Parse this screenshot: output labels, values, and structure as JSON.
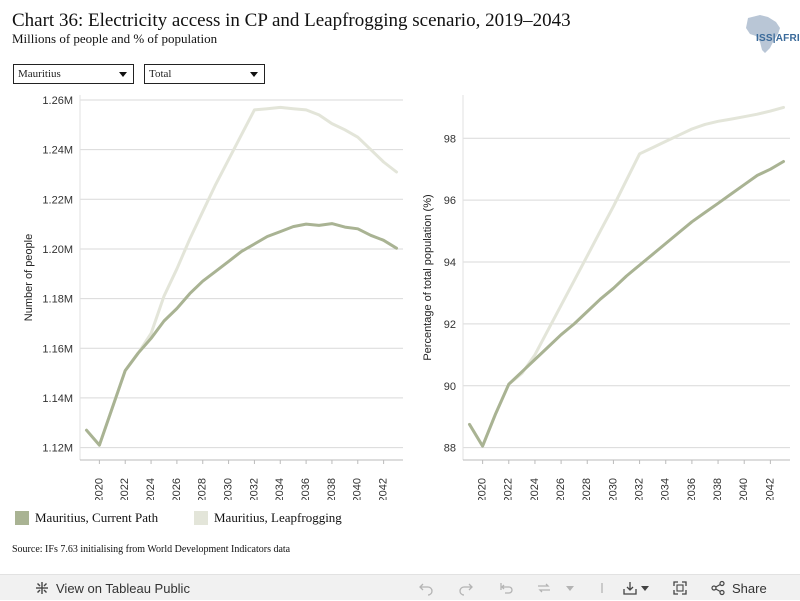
{
  "header": {
    "title": "Chart 36: Electricity access in CP and Leapfrogging scenario, 2019–2043",
    "subtitle": "Millions of people and % of population",
    "logo_text": "ISS|AFRICA"
  },
  "filters": {
    "country": "Mauritius",
    "measure": "Total"
  },
  "colors": {
    "current_path": "#a9b393",
    "leapfrogging": "#e3e5d9",
    "grid": "#d9d9d9"
  },
  "chart_data": [
    {
      "type": "line",
      "ylabel": "Number of people",
      "ylim": [
        1.115,
        1.262
      ],
      "yticks": [
        1.12,
        1.14,
        1.16,
        1.18,
        1.2,
        1.22,
        1.24,
        1.26
      ],
      "ytick_labels": [
        "1.12M",
        "1.14M",
        "1.16M",
        "1.18M",
        "1.20M",
        "1.22M",
        "1.24M",
        "1.26M"
      ],
      "x": [
        2019,
        2020,
        2021,
        2022,
        2023,
        2024,
        2025,
        2026,
        2027,
        2028,
        2029,
        2030,
        2031,
        2032,
        2033,
        2034,
        2035,
        2036,
        2037,
        2038,
        2039,
        2040,
        2041,
        2042,
        2043
      ],
      "xlim": [
        2018.5,
        2043.5
      ],
      "xticks": [
        "2020",
        "2022",
        "2024",
        "2026",
        "2028",
        "2030",
        "2032",
        "2034",
        "2036",
        "2038",
        "2040",
        "2042"
      ],
      "grid": true,
      "series": [
        {
          "name": "Mauritius, Leapfrogging",
          "key": "leapfrogging",
          "values": [
            1.127,
            1.121,
            1.136,
            1.151,
            1.158,
            1.166,
            1.181,
            1.192,
            1.204,
            1.215,
            1.226,
            1.236,
            1.246,
            1.256,
            1.2565,
            1.257,
            1.2565,
            1.256,
            1.254,
            1.2505,
            1.248,
            1.245,
            1.24,
            1.235,
            1.231
          ]
        },
        {
          "name": "Mauritius, Current Path",
          "key": "current_path",
          "values": [
            1.127,
            1.121,
            1.136,
            1.151,
            1.158,
            1.164,
            1.171,
            1.176,
            1.182,
            1.187,
            1.191,
            1.195,
            1.199,
            1.202,
            1.205,
            1.207,
            1.209,
            1.21,
            1.2095,
            1.2102,
            1.2088,
            1.2081,
            1.2055,
            1.2035,
            1.2003
          ]
        }
      ]
    },
    {
      "type": "line",
      "ylabel": "Percentage of total population (%)",
      "ylim": [
        87.6,
        99.4
      ],
      "yticks": [
        88,
        90,
        92,
        94,
        96,
        98
      ],
      "ytick_labels": [
        "88",
        "90",
        "92",
        "94",
        "96",
        "98"
      ],
      "x": [
        2019,
        2020,
        2021,
        2022,
        2023,
        2024,
        2025,
        2026,
        2027,
        2028,
        2029,
        2030,
        2031,
        2032,
        2033,
        2034,
        2035,
        2036,
        2037,
        2038,
        2039,
        2040,
        2041,
        2042,
        2043
      ],
      "xlim": [
        2018.5,
        2043.5
      ],
      "xticks": [
        "2020",
        "2022",
        "2024",
        "2026",
        "2028",
        "2030",
        "2032",
        "2034",
        "2036",
        "2038",
        "2040",
        "2042"
      ],
      "grid": true,
      "series": [
        {
          "name": "Mauritius, Leapfrogging",
          "key": "leapfrogging",
          "values": [
            88.75,
            88.05,
            89.1,
            90.05,
            90.4,
            91.0,
            91.8,
            92.6,
            93.4,
            94.2,
            95.0,
            95.8,
            96.65,
            97.5,
            97.7,
            97.9,
            98.1,
            98.3,
            98.45,
            98.55,
            98.62,
            98.7,
            98.78,
            98.88,
            99.0
          ]
        },
        {
          "name": "Mauritius, Current Path",
          "key": "current_path",
          "values": [
            88.75,
            88.05,
            89.1,
            90.05,
            90.45,
            90.85,
            91.25,
            91.65,
            92.0,
            92.4,
            92.8,
            93.15,
            93.55,
            93.9,
            94.25,
            94.6,
            94.95,
            95.3,
            95.6,
            95.9,
            96.2,
            96.5,
            96.8,
            97.0,
            97.25
          ]
        }
      ]
    }
  ],
  "legend": [
    {
      "label": "Mauritius, Current Path",
      "key": "current_path"
    },
    {
      "label": "Mauritius, Leapfrogging",
      "key": "leapfrogging"
    }
  ],
  "source": "Source: IFs 7.63 initialising from World Development Indicators data",
  "toolbar": {
    "view_label": "View on Tableau Public",
    "share_label": "Share"
  }
}
